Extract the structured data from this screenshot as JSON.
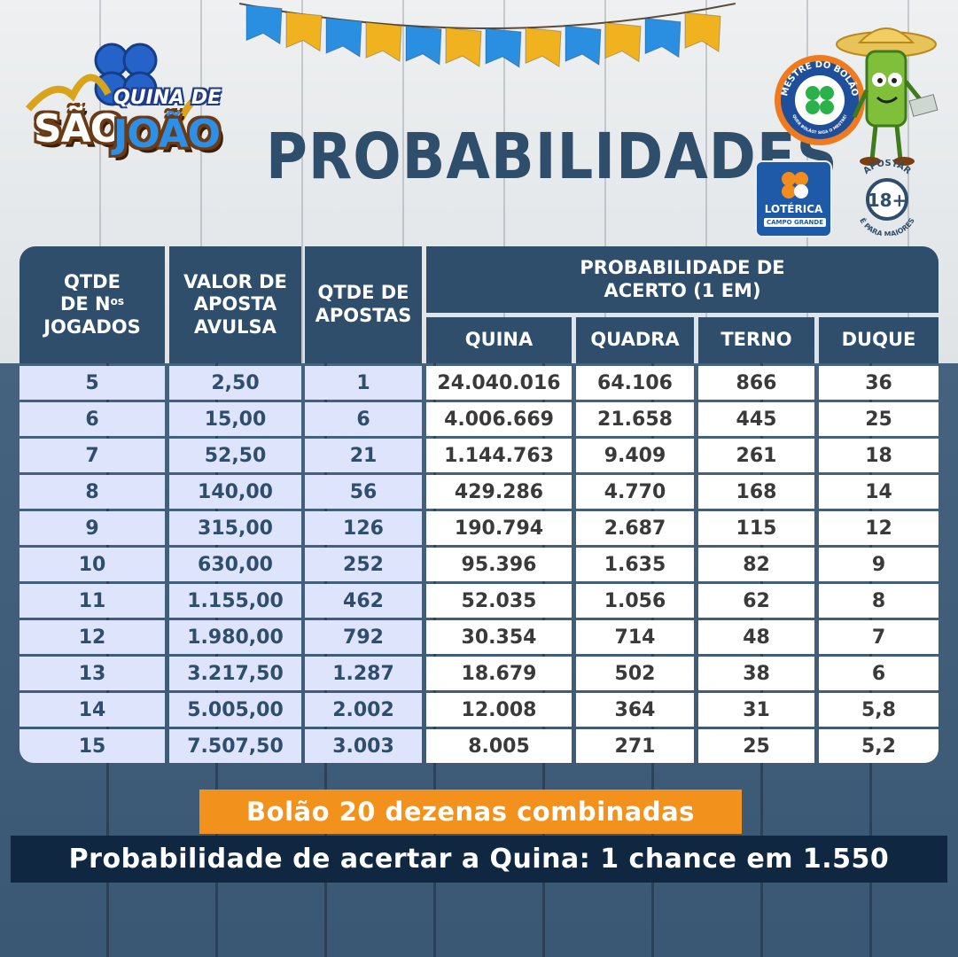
{
  "header": {
    "logo": {
      "sao": "SÃO",
      "quina_de": "QUINA DE",
      "joao": "JOÃO"
    },
    "title": "PROBABILIDADES",
    "mestre_logo": {
      "text": "MESTRE DO BOLÃO",
      "tagline": "QUER BOLÃO? SIGA O MESTRE!"
    },
    "loterica": {
      "title": "LOTÉRICA",
      "subtitle": "CAMPO GRANDE"
    },
    "age_badge": {
      "top": "APOSTAR",
      "number": "18+",
      "bottom": "É PARA MAIORES"
    }
  },
  "table": {
    "headers": {
      "qtde_numeros": [
        "QTDE",
        "DE N",
        "os",
        "JOGADOS"
      ],
      "valor_aposta": [
        "VALOR DE",
        "APOSTA",
        "AVULSA"
      ],
      "qtde_apostas": [
        "QTDE DE",
        "APOSTAS"
      ],
      "probabilidade": [
        "PROBABILIDADE DE",
        "ACERTO (1 EM)"
      ],
      "quina": "QUINA",
      "quadra": "QUADRA",
      "terno": "TERNO",
      "duque": "DUQUE"
    },
    "rows": [
      {
        "numeros": "5",
        "valor": "2,50",
        "apostas": "1",
        "quina": "24.040.016",
        "quadra": "64.106",
        "terno": "866",
        "duque": "36"
      },
      {
        "numeros": "6",
        "valor": "15,00",
        "apostas": "6",
        "quina": "4.006.669",
        "quadra": "21.658",
        "terno": "445",
        "duque": "25"
      },
      {
        "numeros": "7",
        "valor": "52,50",
        "apostas": "21",
        "quina": "1.144.763",
        "quadra": "9.409",
        "terno": "261",
        "duque": "18"
      },
      {
        "numeros": "8",
        "valor": "140,00",
        "apostas": "56",
        "quina": "429.286",
        "quadra": "4.770",
        "terno": "168",
        "duque": "14"
      },
      {
        "numeros": "9",
        "valor": "315,00",
        "apostas": "126",
        "quina": "190.794",
        "quadra": "2.687",
        "terno": "115",
        "duque": "12"
      },
      {
        "numeros": "10",
        "valor": "630,00",
        "apostas": "252",
        "quina": "95.396",
        "quadra": "1.635",
        "terno": "82",
        "duque": "9"
      },
      {
        "numeros": "11",
        "valor": "1.155,00",
        "apostas": "462",
        "quina": "52.035",
        "quadra": "1.056",
        "terno": "62",
        "duque": "8"
      },
      {
        "numeros": "12",
        "valor": "1.980,00",
        "apostas": "792",
        "quina": "30.354",
        "quadra": "714",
        "terno": "48",
        "duque": "7"
      },
      {
        "numeros": "13",
        "valor": "3.217,50",
        "apostas": "1.287",
        "quina": "18.679",
        "quadra": "502",
        "terno": "38",
        "duque": "6"
      },
      {
        "numeros": "14",
        "valor": "5.005,00",
        "apostas": "2.002",
        "quina": "12.008",
        "quadra": "364",
        "terno": "31",
        "duque": "5,8"
      },
      {
        "numeros": "15",
        "valor": "7.507,50",
        "apostas": "3.003",
        "quina": "8.005",
        "quadra": "271",
        "terno": "25",
        "duque": "5,2"
      }
    ]
  },
  "footer": {
    "bolao": "Bolão 20 dezenas combinadas",
    "probabilidade": "Probabilidade de acertar a Quina: 1 chance em 1.550"
  },
  "colors": {
    "navy": "#2f4e6b",
    "light_blue_cell": "#dde4fb",
    "orange": "#f2921c",
    "dark_navy": "#0f2740",
    "bunting_blue": "#2a8fe0",
    "bunting_yellow": "#f0b21e"
  }
}
